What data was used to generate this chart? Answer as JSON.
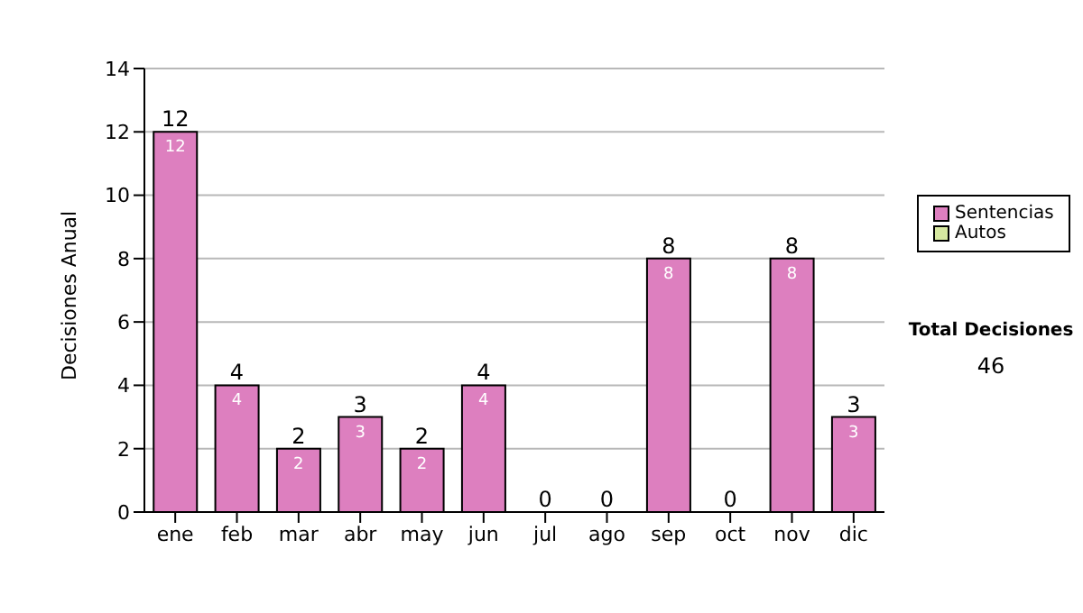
{
  "chart_data": {
    "type": "bar",
    "ylabel": "Decisiones Anual",
    "categories": [
      "ene",
      "feb",
      "mar",
      "abr",
      "may",
      "jun",
      "jul",
      "ago",
      "sep",
      "oct",
      "nov",
      "dic"
    ],
    "series": [
      {
        "name": "Sentencias",
        "color": "#dd7fbf",
        "values": [
          12,
          4,
          2,
          3,
          2,
          4,
          0,
          0,
          8,
          0,
          8,
          3
        ],
        "value_labels": [
          "12",
          "4",
          "2",
          "3",
          "2",
          "4",
          null,
          null,
          "8",
          null,
          "8",
          "3"
        ]
      },
      {
        "name": "Autos",
        "color": "#d6e8a0",
        "values": [
          0,
          0,
          0,
          0,
          0,
          0,
          0,
          0,
          0,
          0,
          0,
          0
        ]
      }
    ],
    "stacked": true,
    "totals": [
      "12",
      "4",
      "2",
      "3",
      "2",
      "4",
      "0",
      "0",
      "8",
      "0",
      "8",
      "3"
    ],
    "ylim": [
      0,
      14
    ],
    "yticks": [
      0,
      2,
      4,
      6,
      8,
      10,
      12,
      14
    ],
    "grid": "y",
    "legend": "right",
    "annotations": [
      "Total Decisiones",
      "46"
    ]
  }
}
